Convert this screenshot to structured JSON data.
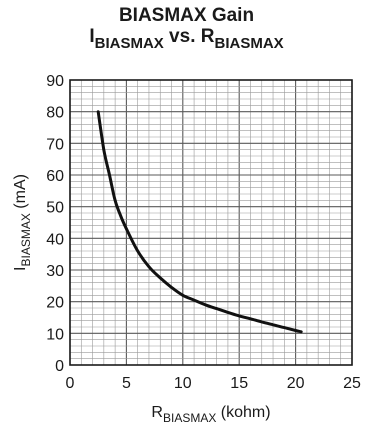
{
  "chart_data": {
    "type": "line",
    "title_line1": "BIASMAX Gain",
    "title_line2": {
      "y_symbol": "I",
      "y_sub": "BIASMAX",
      "vs": " vs. ",
      "x_symbol": "R",
      "x_sub": "BIASMAX"
    },
    "xlabel": {
      "symbol": "R",
      "sub": "BIASMAX",
      "unit": " (kohm)"
    },
    "ylabel": {
      "symbol": "I",
      "sub": "BIASMAX",
      "unit": " (mA)"
    },
    "xlim": [
      0,
      25
    ],
    "ylim": [
      0,
      90
    ],
    "x_ticks": [
      0,
      5,
      10,
      15,
      20,
      25
    ],
    "y_ticks": [
      0,
      10,
      20,
      30,
      40,
      50,
      60,
      70,
      80,
      90
    ],
    "x_minor_step": 1,
    "y_minor_step": 2,
    "grid": true,
    "series": [
      {
        "color": "#111111",
        "points": [
          [
            2.5,
            80
          ],
          [
            3.0,
            68
          ],
          [
            3.5,
            60
          ],
          [
            4.0,
            52
          ],
          [
            4.5,
            47
          ],
          [
            5.0,
            43
          ],
          [
            6.0,
            36
          ],
          [
            7.0,
            31
          ],
          [
            8.0,
            27.5
          ],
          [
            9.0,
            24.5
          ],
          [
            10.0,
            22
          ],
          [
            11.0,
            20.5
          ],
          [
            12.0,
            19
          ],
          [
            13.0,
            17.8
          ],
          [
            14.0,
            16.6
          ],
          [
            15.0,
            15.5
          ],
          [
            16.0,
            14.6
          ],
          [
            17.0,
            13.6
          ],
          [
            18.0,
            12.7
          ],
          [
            19.0,
            11.8
          ],
          [
            20.0,
            10.9
          ],
          [
            20.5,
            10.5
          ]
        ]
      }
    ]
  }
}
